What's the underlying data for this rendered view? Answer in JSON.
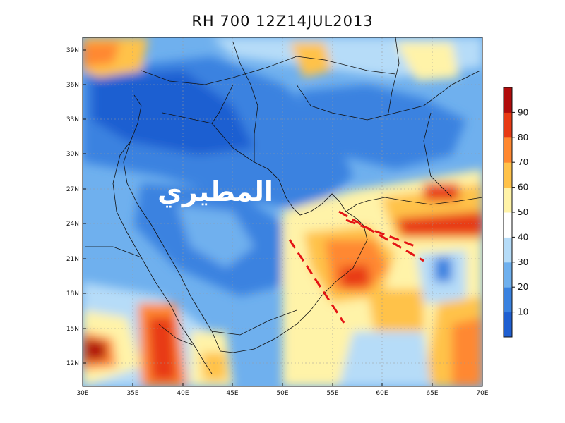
{
  "title": "RH 700  12Z14JUL2013",
  "watermark": "المطيري",
  "map": {
    "lon_ticks": [
      "30E",
      "35E",
      "40E",
      "45E",
      "50E",
      "55E",
      "60E",
      "65E",
      "70E"
    ],
    "lat_ticks": [
      "39N",
      "36N",
      "33N",
      "30N",
      "27N",
      "24N",
      "21N",
      "18N",
      "15N",
      "12N"
    ]
  },
  "colorbar": {
    "labels": [
      "10",
      "20",
      "30",
      "40",
      "50",
      "60",
      "70",
      "80",
      "90"
    ],
    "colors": [
      "#1f5fd1",
      "#3a82e0",
      "#6fb0ee",
      "#b6dcf8",
      "#ffffff",
      "#fff3a8",
      "#ffc24a",
      "#ff8830",
      "#e83a14",
      "#b00c0c"
    ]
  }
}
